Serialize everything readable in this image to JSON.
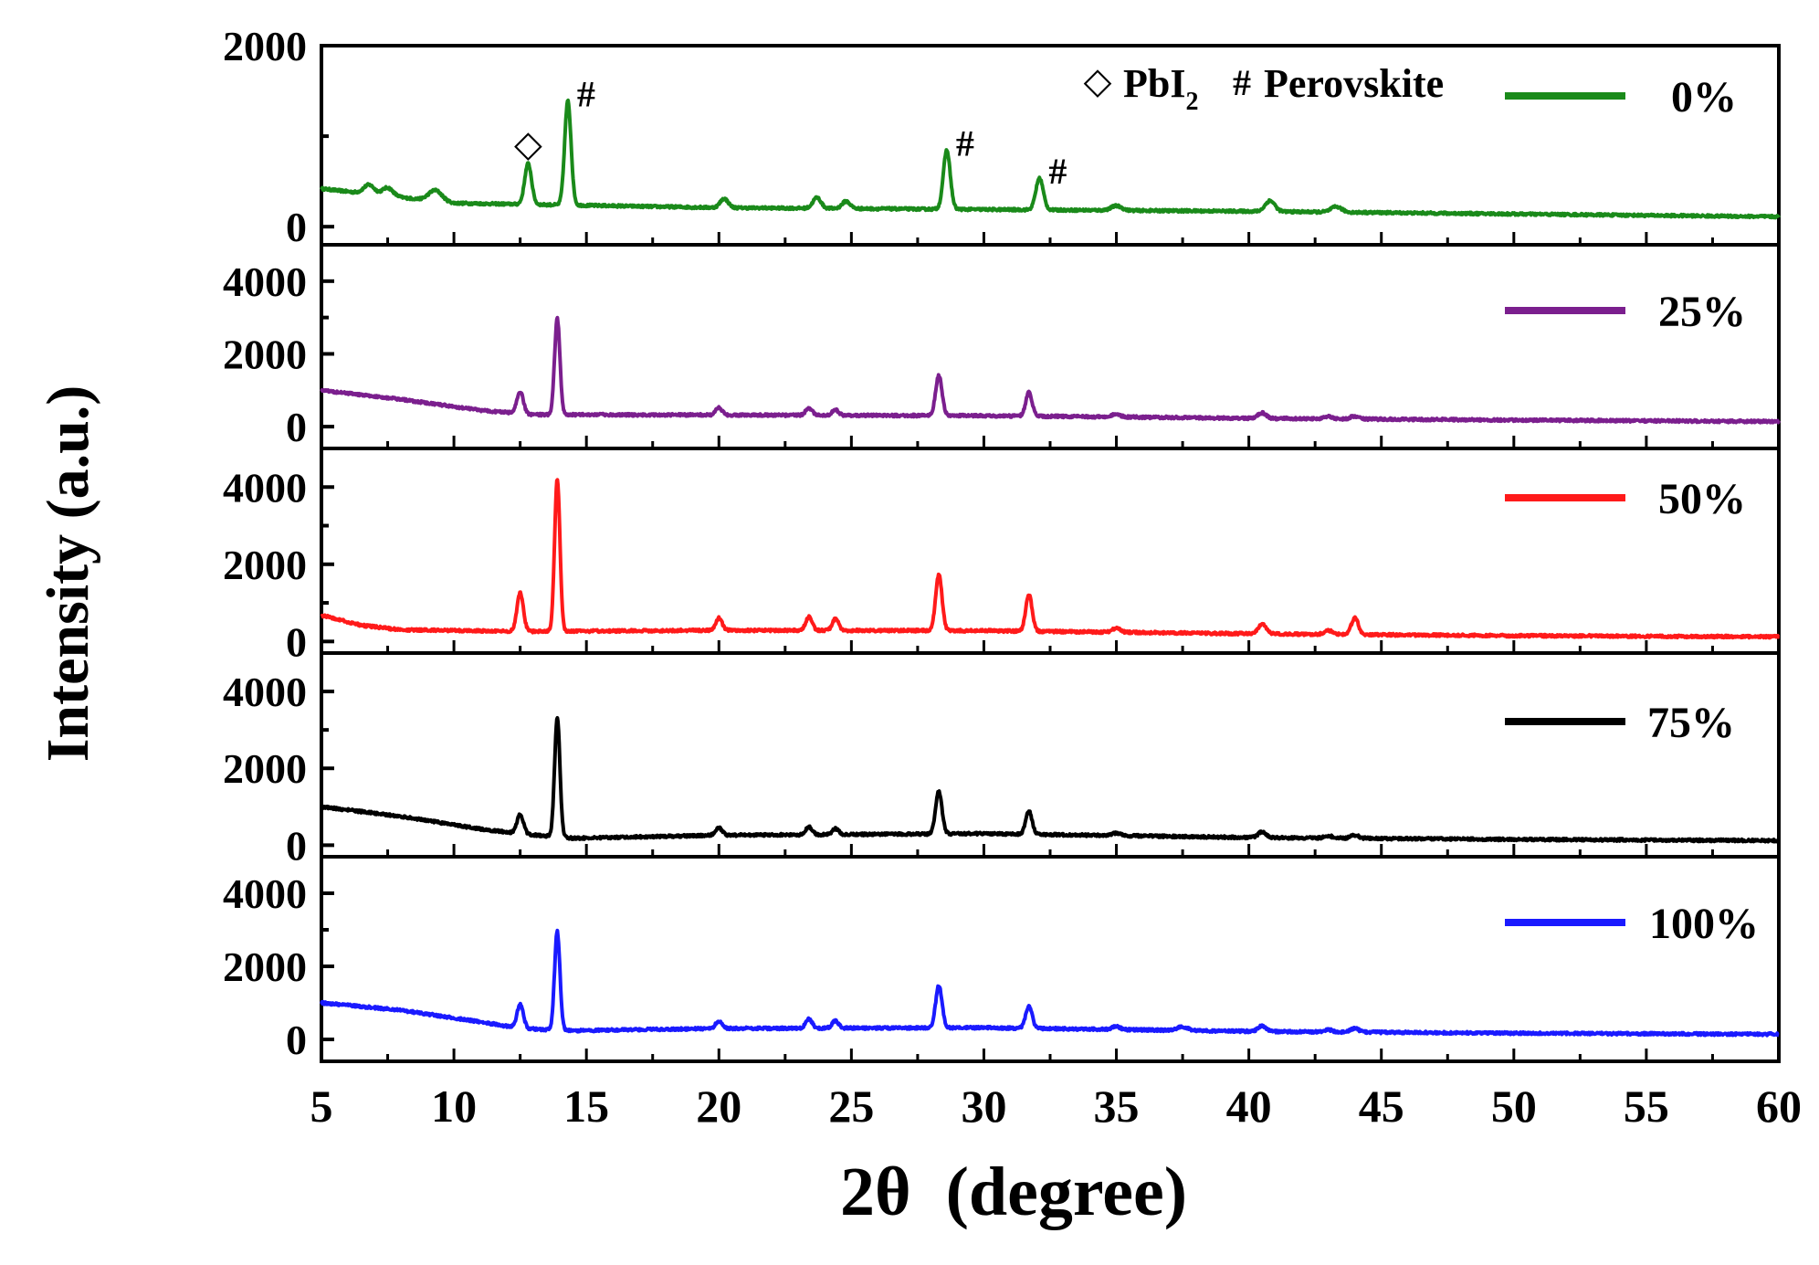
{
  "chart_data": {
    "type": "line",
    "layout": "stacked",
    "ylabel": "Intensity (a.u.)",
    "xlabel": "2θ  (degree)",
    "xlim": [
      5,
      60
    ],
    "xticks": [
      5,
      10,
      15,
      20,
      25,
      30,
      35,
      40,
      45,
      50,
      55,
      60
    ],
    "xtick_labels": [
      "5",
      "10",
      "15",
      "20",
      "25",
      "30",
      "35",
      "40",
      "45",
      "50",
      "55",
      "60"
    ],
    "annotations": {
      "pbi2_symbol": "◇",
      "pbi2_text": "PbI",
      "pbi2_subscript": "2",
      "perovskite_symbol": "#",
      "perovskite_text": "Perovskite"
    },
    "marker_symbols": {
      "diamond": "◇",
      "hash": "#"
    },
    "series": [
      {
        "name": "0%",
        "color": "#1a8a1a",
        "ylim": [
          -200,
          2000
        ],
        "yticks": [
          0,
          2000
        ],
        "ytick_labels": [
          "0",
          "2000"
        ],
        "baseline": [
          [
            5,
            420
          ],
          [
            10,
            260
          ],
          [
            20,
            210
          ],
          [
            30,
            190
          ],
          [
            40,
            170
          ],
          [
            50,
            140
          ],
          [
            60,
            110
          ]
        ],
        "peaks": [
          {
            "x": 6.8,
            "h": 100,
            "w": 0.2
          },
          {
            "x": 7.5,
            "h": 90,
            "w": 0.2
          },
          {
            "x": 9.3,
            "h": 120,
            "w": 0.25
          },
          {
            "x": 12.8,
            "h": 450,
            "w": 0.13
          },
          {
            "x": 14.3,
            "h": 1150,
            "w": 0.12
          },
          {
            "x": 20.2,
            "h": 100,
            "w": 0.15
          },
          {
            "x": 23.7,
            "h": 120,
            "w": 0.15
          },
          {
            "x": 24.8,
            "h": 80,
            "w": 0.15
          },
          {
            "x": 28.6,
            "h": 650,
            "w": 0.13
          },
          {
            "x": 32.1,
            "h": 350,
            "w": 0.14
          },
          {
            "x": 35.0,
            "h": 50,
            "w": 0.2
          },
          {
            "x": 40.8,
            "h": 120,
            "w": 0.18
          },
          {
            "x": 43.3,
            "h": 60,
            "w": 0.2
          }
        ],
        "markers": [
          {
            "x": 12.8,
            "type": "diamond"
          },
          {
            "x": 14.3,
            "type": "hash"
          },
          {
            "x": 28.6,
            "type": "hash"
          },
          {
            "x": 32.1,
            "type": "hash"
          }
        ]
      },
      {
        "name": "25%",
        "color": "#7b1f8e",
        "ylim": [
          -600,
          5000
        ],
        "yticks": [
          0,
          2000,
          4000
        ],
        "ytick_labels": [
          "0",
          "2000",
          "4000"
        ],
        "baseline": [
          [
            5,
            1000
          ],
          [
            8,
            750
          ],
          [
            11,
            450
          ],
          [
            13,
            330
          ],
          [
            20,
            320
          ],
          [
            30,
            300
          ],
          [
            40,
            230
          ],
          [
            50,
            180
          ],
          [
            60,
            140
          ]
        ],
        "peaks": [
          {
            "x": 12.5,
            "h": 600,
            "w": 0.12
          },
          {
            "x": 13.9,
            "h": 2650,
            "w": 0.1
          },
          {
            "x": 20.0,
            "h": 200,
            "w": 0.12
          },
          {
            "x": 23.4,
            "h": 200,
            "w": 0.12
          },
          {
            "x": 24.4,
            "h": 150,
            "w": 0.12
          },
          {
            "x": 28.3,
            "h": 1100,
            "w": 0.12
          },
          {
            "x": 31.7,
            "h": 650,
            "w": 0.12
          },
          {
            "x": 35.0,
            "h": 80,
            "w": 0.15
          },
          {
            "x": 40.5,
            "h": 150,
            "w": 0.15
          },
          {
            "x": 43.0,
            "h": 60,
            "w": 0.15
          },
          {
            "x": 44.0,
            "h": 80,
            "w": 0.15
          }
        ],
        "markers": []
      },
      {
        "name": "50%",
        "color": "#ff1a1a",
        "ylim": [
          -300,
          5000
        ],
        "yticks": [
          0,
          2000,
          4000
        ],
        "ytick_labels": [
          "0",
          "2000",
          "4000"
        ],
        "baseline": [
          [
            5,
            680
          ],
          [
            6.5,
            420
          ],
          [
            8,
            300
          ],
          [
            13,
            260
          ],
          [
            20,
            290
          ],
          [
            30,
            280
          ],
          [
            40,
            200
          ],
          [
            50,
            150
          ],
          [
            60,
            120
          ]
        ],
        "peaks": [
          {
            "x": 12.5,
            "h": 1000,
            "w": 0.12
          },
          {
            "x": 13.9,
            "h": 3950,
            "w": 0.1
          },
          {
            "x": 20.0,
            "h": 320,
            "w": 0.12
          },
          {
            "x": 23.4,
            "h": 350,
            "w": 0.12
          },
          {
            "x": 24.4,
            "h": 300,
            "w": 0.12
          },
          {
            "x": 28.3,
            "h": 1450,
            "w": 0.12
          },
          {
            "x": 31.7,
            "h": 950,
            "w": 0.12
          },
          {
            "x": 35.0,
            "h": 100,
            "w": 0.15
          },
          {
            "x": 40.5,
            "h": 250,
            "w": 0.15
          },
          {
            "x": 43.0,
            "h": 100,
            "w": 0.15
          },
          {
            "x": 44.0,
            "h": 430,
            "w": 0.13
          }
        ],
        "markers": []
      },
      {
        "name": "75%",
        "color": "#000000",
        "ylim": [
          -300,
          5000
        ],
        "yticks": [
          0,
          2000,
          4000
        ],
        "ytick_labels": [
          "0",
          "2000",
          "4000"
        ],
        "baseline": [
          [
            5,
            1000
          ],
          [
            8,
            750
          ],
          [
            11,
            420
          ],
          [
            12.5,
            300
          ],
          [
            14.5,
            180
          ],
          [
            20,
            260
          ],
          [
            30,
            300
          ],
          [
            40,
            200
          ],
          [
            50,
            150
          ],
          [
            60,
            120
          ]
        ],
        "peaks": [
          {
            "x": 12.5,
            "h": 500,
            "w": 0.12
          },
          {
            "x": 13.9,
            "h": 3100,
            "w": 0.1
          },
          {
            "x": 20.0,
            "h": 200,
            "w": 0.12
          },
          {
            "x": 23.4,
            "h": 200,
            "w": 0.12
          },
          {
            "x": 24.4,
            "h": 150,
            "w": 0.12
          },
          {
            "x": 28.3,
            "h": 1100,
            "w": 0.12
          },
          {
            "x": 31.7,
            "h": 600,
            "w": 0.12
          },
          {
            "x": 35.0,
            "h": 60,
            "w": 0.15
          },
          {
            "x": 40.5,
            "h": 150,
            "w": 0.15
          },
          {
            "x": 43.0,
            "h": 60,
            "w": 0.15
          },
          {
            "x": 44.0,
            "h": 80,
            "w": 0.15
          }
        ],
        "markers": []
      },
      {
        "name": "100%",
        "color": "#1a1aff",
        "ylim": [
          -600,
          5000
        ],
        "yticks": [
          0,
          2000,
          4000
        ],
        "ytick_labels": [
          "0",
          "2000",
          "4000"
        ],
        "baseline": [
          [
            5,
            1000
          ],
          [
            8,
            800
          ],
          [
            11,
            480
          ],
          [
            12.5,
            300
          ],
          [
            14.5,
            240
          ],
          [
            20,
            300
          ],
          [
            30,
            320
          ],
          [
            40,
            220
          ],
          [
            50,
            170
          ],
          [
            60,
            140
          ]
        ],
        "peaks": [
          {
            "x": 12.5,
            "h": 650,
            "w": 0.12
          },
          {
            "x": 13.9,
            "h": 2700,
            "w": 0.1
          },
          {
            "x": 20.0,
            "h": 200,
            "w": 0.12
          },
          {
            "x": 23.4,
            "h": 250,
            "w": 0.12
          },
          {
            "x": 24.4,
            "h": 200,
            "w": 0.12
          },
          {
            "x": 28.3,
            "h": 1150,
            "w": 0.12
          },
          {
            "x": 31.7,
            "h": 600,
            "w": 0.12
          },
          {
            "x": 35.0,
            "h": 80,
            "w": 0.15
          },
          {
            "x": 37.5,
            "h": 100,
            "w": 0.2
          },
          {
            "x": 40.5,
            "h": 150,
            "w": 0.15
          },
          {
            "x": 43.0,
            "h": 60,
            "w": 0.15
          },
          {
            "x": 44.0,
            "h": 100,
            "w": 0.15
          }
        ],
        "markers": []
      }
    ]
  }
}
